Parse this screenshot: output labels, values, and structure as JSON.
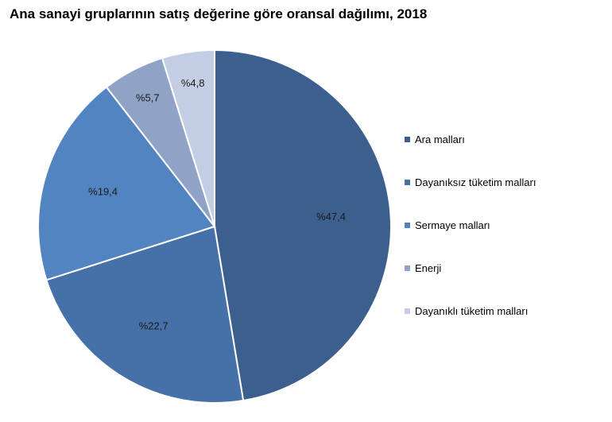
{
  "chart_data": {
    "type": "pie",
    "title": "Ana sanayi gruplarının satış değerine göre oransal dağılımı, 2018",
    "slices": [
      {
        "name": "Ara malları",
        "value": 47.4,
        "label": "%47,4",
        "color": "#3c5f8e"
      },
      {
        "name": "Dayanıksız tüketim malları",
        "value": 22.7,
        "label": "%22,7",
        "color": "#4671a8"
      },
      {
        "name": "Sermaye malları",
        "value": 19.4,
        "label": "%19,4",
        "color": "#5284c2"
      },
      {
        "name": "Enerji",
        "value": 5.7,
        "label": "%5,7",
        "color": "#8ea3c6"
      },
      {
        "name": "Dayanıklı tüketim malları",
        "value": 4.8,
        "label": "%4,8",
        "color": "#c3cde3"
      }
    ],
    "legend_position": "right"
  }
}
